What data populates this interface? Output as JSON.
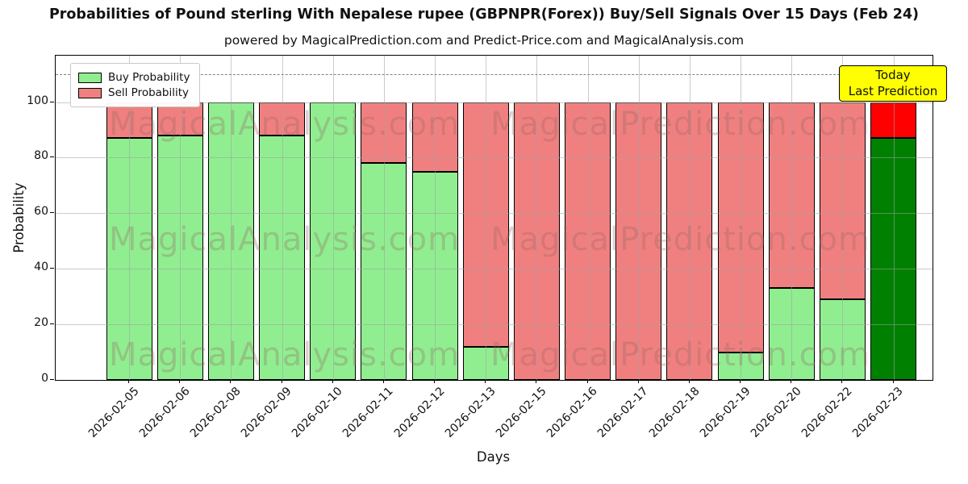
{
  "chart_data": {
    "type": "bar",
    "stacked": true,
    "title": "Probabilities of Pound sterling With Nepalese rupee (GBPNPR(Forex)) Buy/Sell Signals Over 15 Days (Feb 24)",
    "subtitle": "powered by MagicalPrediction.com and Predict-Price.com and MagicalAnalysis.com",
    "xlabel": "Days",
    "ylabel": "Probability",
    "ylim": [
      0,
      116.7
    ],
    "yticks": [
      0,
      20,
      40,
      60,
      80,
      100
    ],
    "grid": true,
    "legend_position": "upper-left",
    "categories": [
      "2026-02-05",
      "2026-02-06",
      "2026-02-08",
      "2026-02-09",
      "2026-02-10",
      "2026-02-11",
      "2026-02-12",
      "2026-02-13",
      "2026-02-15",
      "2026-02-16",
      "2026-02-17",
      "2026-02-18",
      "2026-02-19",
      "2026-02-20",
      "2026-02-22",
      "2026-02-23"
    ],
    "series": [
      {
        "name": "Buy Probability",
        "color": "#90EE90",
        "today_color": "#008000",
        "values": [
          87,
          88,
          100,
          88,
          100,
          78,
          75,
          12,
          0,
          0,
          0,
          0,
          10,
          33,
          29,
          87
        ]
      },
      {
        "name": "Sell Probability",
        "color": "#F08080",
        "today_color": "#FF0000",
        "values": [
          13,
          12,
          0,
          12,
          0,
          22,
          25,
          88,
          100,
          100,
          100,
          100,
          90,
          67,
          71,
          13
        ]
      }
    ],
    "today_index": 15,
    "threshold_line": {
      "y": 110,
      "style": "dashed",
      "color": "#808080"
    },
    "annotation": {
      "line1": "Today",
      "line2": "Last Prediction",
      "bg": "#FFFF00",
      "border": "#000000"
    },
    "watermarks": [
      "MagicalAnalysis.com",
      "MagicalPrediction.com"
    ],
    "bar_edge_color": "#000000",
    "grid_color": "#A0A0A0"
  }
}
